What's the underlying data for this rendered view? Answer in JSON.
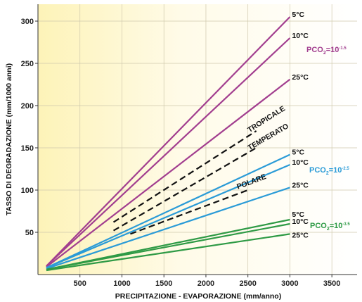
{
  "chart_data": {
    "type": "line",
    "xlabel": "PRECIPITAZIONE - EVAPORAZIONE (mm/anno)",
    "ylabel": "TASSO DI DEGRADAZIONE (mm/1000 anni)",
    "xlim": [
      0,
      3800
    ],
    "ylim": [
      0,
      320
    ],
    "xticks": [
      500,
      1000,
      1500,
      2000,
      2500,
      3000,
      3500
    ],
    "yticks": [
      50,
      100,
      150,
      200,
      250,
      300
    ],
    "grid": true,
    "groups": [
      {
        "label": "PCO",
        "sub": "2",
        "eq": "=10",
        "exp": "-1.5",
        "color": "#a23e8f",
        "series": [
          {
            "name": "5°C",
            "x": [
              100,
              3000
            ],
            "y": [
              10,
              305
            ]
          },
          {
            "name": "10°C",
            "x": [
              100,
              3000
            ],
            "y": [
              10,
              280
            ]
          },
          {
            "name": "25°C",
            "x": [
              100,
              3000
            ],
            "y": [
              9,
              231
            ]
          }
        ]
      },
      {
        "label": "PCO",
        "sub": "2",
        "eq": "=10",
        "exp": "-2.5",
        "color": "#2a9bd7",
        "series": [
          {
            "name": "5°C",
            "x": [
              100,
              3000
            ],
            "y": [
              8,
              142
            ]
          },
          {
            "name": "10°C",
            "x": [
              100,
              3000
            ],
            "y": [
              8,
              130
            ]
          },
          {
            "name": "25°C",
            "x": [
              100,
              3000
            ],
            "y": [
              7,
              103
            ]
          }
        ]
      },
      {
        "label": "PCO",
        "sub": "2",
        "eq": "=10",
        "exp": "-3.5",
        "color": "#2e9a45",
        "series": [
          {
            "name": "5°C",
            "x": [
              100,
              3000
            ],
            "y": [
              6,
              65
            ]
          },
          {
            "name": "10°C",
            "x": [
              100,
              3000
            ],
            "y": [
              6,
              60
            ]
          },
          {
            "name": "25°C",
            "x": [
              100,
              3000
            ],
            "y": [
              5,
              48
            ]
          }
        ]
      }
    ],
    "climates": [
      {
        "name": "TROPICALE",
        "x": [
          900,
          2600
        ],
        "y": [
          62,
          170
        ]
      },
      {
        "name": "TEMPERATO",
        "x": [
          900,
          2600
        ],
        "y": [
          52,
          150
        ]
      },
      {
        "name": "POLARE",
        "x": [
          1100,
          2500
        ],
        "y": [
          48,
          100
        ]
      }
    ]
  }
}
